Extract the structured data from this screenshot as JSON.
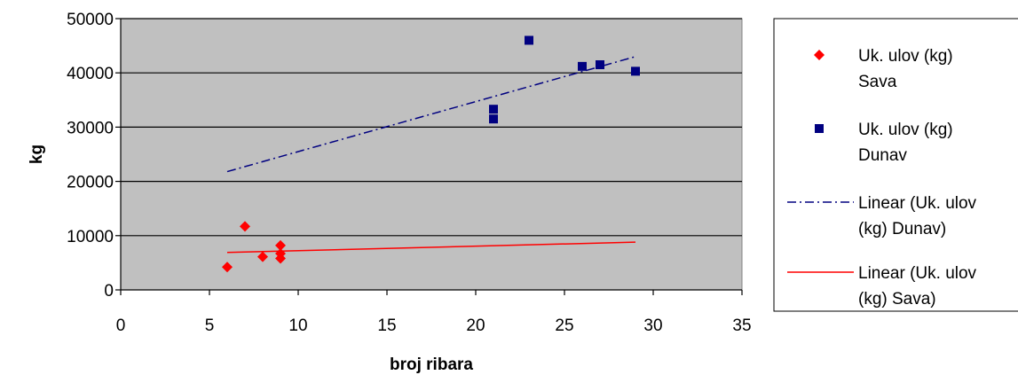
{
  "chart_data": {
    "type": "scatter",
    "xlabel": "broj ribara",
    "ylabel": "kg",
    "xlim": [
      0,
      35
    ],
    "ylim": [
      0,
      50000
    ],
    "x_ticks": [
      0,
      5,
      10,
      15,
      20,
      25,
      30,
      35
    ],
    "y_ticks": [
      0,
      10000,
      20000,
      30000,
      40000,
      50000
    ],
    "grid": "horizontal",
    "plot_background": "#c0c0c0",
    "legend_position": "right",
    "series": [
      {
        "name": "Uk. ulov (kg) Sava",
        "legend_lines": [
          "Uk. ulov (kg)",
          "Sava"
        ],
        "marker": "diamond",
        "color": "#ff0000",
        "points": [
          {
            "x": 6,
            "y": 4200
          },
          {
            "x": 7,
            "y": 11700
          },
          {
            "x": 8,
            "y": 6100
          },
          {
            "x": 9,
            "y": 5800
          },
          {
            "x": 9,
            "y": 6700
          },
          {
            "x": 9,
            "y": 8200
          }
        ]
      },
      {
        "name": "Uk. ulov (kg) Dunav",
        "legend_lines": [
          "Uk. ulov (kg)",
          "Dunav"
        ],
        "marker": "square",
        "color": "#000080",
        "points": [
          {
            "x": 21,
            "y": 31500
          },
          {
            "x": 21,
            "y": 33300
          },
          {
            "x": 23,
            "y": 46000
          },
          {
            "x": 26,
            "y": 41200
          },
          {
            "x": 27,
            "y": 41500
          },
          {
            "x": 29,
            "y": 40300
          }
        ]
      }
    ],
    "trendlines": [
      {
        "name": "Linear (Uk. ulov (kg) Dunav)",
        "legend_lines": [
          "Linear (Uk. ulov",
          "(kg) Dunav)"
        ],
        "style": "dash-dot",
        "color": "#000080",
        "x": [
          6,
          29
        ],
        "y": [
          21800,
          43000
        ]
      },
      {
        "name": "Linear (Uk. ulov (kg) Sava)",
        "legend_lines": [
          "Linear (Uk. ulov",
          "(kg) Sava)"
        ],
        "style": "solid",
        "color": "#ff0000",
        "x": [
          6,
          29
        ],
        "y": [
          6900,
          8800
        ]
      }
    ]
  }
}
